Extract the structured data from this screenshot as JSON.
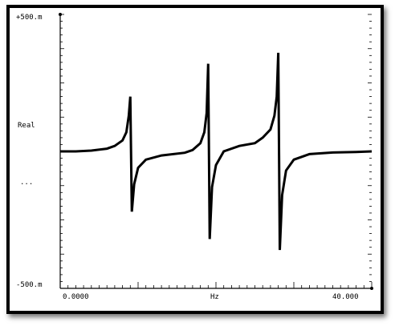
{
  "chart_data": {
    "type": "line",
    "ylabel": "Real",
    "ylabel_secondary": "...",
    "xlabel": "Hz",
    "y_top_label": "+500.m",
    "y_bottom_label": "-500.m",
    "x_left_label": "0.0000",
    "x_right_label": "40.000",
    "xlim": [
      0,
      40
    ],
    "ylim": [
      -0.5,
      0.5
    ],
    "grid": false,
    "line_color": "#000000",
    "series": [
      {
        "x": [
          0,
          2,
          4,
          6,
          7,
          8,
          8.5,
          8.8,
          9.0,
          9.2,
          9.5,
          10,
          11,
          13,
          16,
          17,
          18,
          18.5,
          18.8,
          19.0,
          19.2,
          19.5,
          20,
          21,
          23,
          25,
          26,
          27,
          27.5,
          27.8,
          28.0,
          28.2,
          28.5,
          29,
          30,
          32,
          35,
          38,
          40
        ],
        "y": [
          0.0,
          0.0,
          0.003,
          0.01,
          0.02,
          0.04,
          0.07,
          0.13,
          0.2,
          -0.22,
          -0.12,
          -0.06,
          -0.03,
          -0.015,
          -0.005,
          0.005,
          0.03,
          0.07,
          0.14,
          0.32,
          -0.32,
          -0.13,
          -0.05,
          0.0,
          0.02,
          0.03,
          0.05,
          0.08,
          0.13,
          0.2,
          0.36,
          -0.36,
          -0.16,
          -0.07,
          -0.03,
          -0.01,
          -0.004,
          -0.002,
          0.0
        ]
      }
    ]
  }
}
